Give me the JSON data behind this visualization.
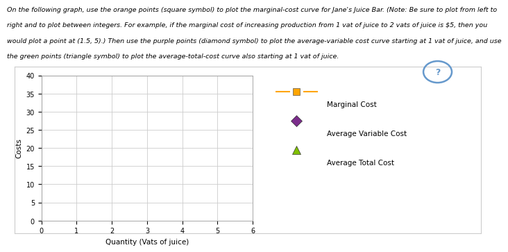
{
  "title_lines": [
    "On the following graph, use the orange points (square symbol) to plot the marginal-cost curve for Jane's Juice Bar. (Note: Be sure to plot from left to",
    "right and to plot between integers. For example, if the marginal cost of increasing production from 1 vat of juice to 2 vats of juice is $5, then you",
    "would plot a point at (1.5, 5).) Then use the purple points (diamond symbol) to plot the average-variable cost curve starting at 1 vat of juice, and use",
    "the green points (triangle symbol) to plot the average-total-cost curve also starting at 1 vat of juice."
  ],
  "xlabel": "Quantity (Vats of juice)",
  "ylabel": "Costs",
  "xlim": [
    0,
    6
  ],
  "ylim": [
    0,
    40
  ],
  "xticks": [
    0,
    1,
    2,
    3,
    4,
    5,
    6
  ],
  "yticks": [
    0,
    5,
    10,
    15,
    20,
    25,
    30,
    35,
    40
  ],
  "mc_color": "#FFA500",
  "mc_marker": "s",
  "avc_color": "#7B2D8B",
  "avc_marker": "D",
  "atc_color": "#80C000",
  "atc_marker": "^",
  "mc_label": "Marginal Cost",
  "avc_label": "Average Variable Cost",
  "atc_label": "Average Total Cost",
  "bg_color": "#ffffff",
  "grid_color": "#cccccc",
  "qmark_color": "#6699CC"
}
